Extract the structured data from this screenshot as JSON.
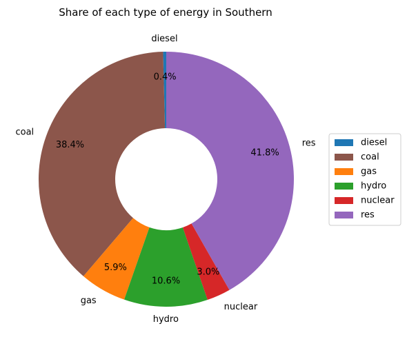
{
  "chart_data": {
    "type": "pie",
    "title": "Share of each type of energy in Southern",
    "categories": [
      "diesel",
      "coal",
      "gas",
      "hydro",
      "nuclear",
      "res"
    ],
    "values": [
      0.4,
      38.4,
      5.9,
      10.6,
      3.0,
      41.8
    ],
    "value_labels": [
      "0.4%",
      "38.4%",
      "5.9%",
      "10.6%",
      "3.0%",
      "41.8%"
    ],
    "colors": [
      "#1f77b4",
      "#8c564b",
      "#ff7f0e",
      "#2ca02c",
      "#d62728",
      "#9467bd"
    ],
    "start_angle_deg": 90,
    "direction": "counterclockwise",
    "donut": true,
    "legend": {
      "placement": "right",
      "entries": [
        "diesel",
        "coal",
        "gas",
        "hydro",
        "nuclear",
        "res"
      ]
    }
  }
}
